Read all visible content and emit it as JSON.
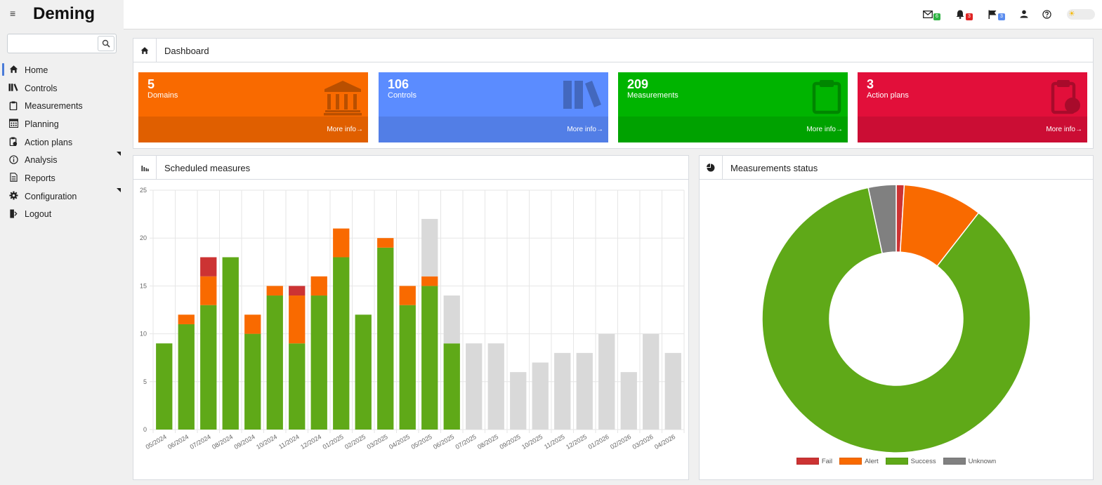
{
  "app": {
    "title": "Deming"
  },
  "search": {
    "placeholder": "",
    "value": ""
  },
  "sidebar": {
    "items": [
      {
        "name": "home",
        "label": "Home",
        "active": true,
        "submenu": false
      },
      {
        "name": "controls",
        "label": "Controls",
        "active": false,
        "submenu": false
      },
      {
        "name": "measurements",
        "label": "Measurements",
        "active": false,
        "submenu": false
      },
      {
        "name": "planning",
        "label": "Planning",
        "active": false,
        "submenu": false
      },
      {
        "name": "action-plans",
        "label": "Action plans",
        "active": false,
        "submenu": false
      },
      {
        "name": "analysis",
        "label": "Analysis",
        "active": false,
        "submenu": true
      },
      {
        "name": "reports",
        "label": "Reports",
        "active": false,
        "submenu": false
      },
      {
        "name": "configuration",
        "label": "Configuration",
        "active": false,
        "submenu": true
      },
      {
        "name": "logout",
        "label": "Logout",
        "active": false,
        "submenu": false
      }
    ]
  },
  "header": {
    "mail_count": "6",
    "bell_count": "3",
    "flag_count": "3",
    "colors": {
      "mail": "#2fb344",
      "bell": "#e02424",
      "flag": "#5b8def"
    }
  },
  "breadcrumb": {
    "title": "Dashboard"
  },
  "tiles": [
    {
      "name": "domains",
      "count": "5",
      "label": "Domains",
      "more": "More info",
      "color": "#f96a00",
      "footer_color": "#e05f00",
      "icon": "bank-icon"
    },
    {
      "name": "controls",
      "count": "106",
      "label": "Controls",
      "more": "More info",
      "color": "#5b8cff",
      "footer_color": "#527ee6",
      "icon": "books-icon"
    },
    {
      "name": "measurements",
      "count": "209",
      "label": "Measurements",
      "more": "More info",
      "color": "#00b400",
      "footer_color": "#00a200",
      "icon": "clipboard-icon"
    },
    {
      "name": "action-plans",
      "count": "3",
      "label": "Action plans",
      "more": "More info",
      "color": "#e20f3a",
      "footer_color": "#cb0d34",
      "icon": "clipboard-clock-icon"
    }
  ],
  "scheduled": {
    "title": "Scheduled measures"
  },
  "status": {
    "title": "Measurements status"
  },
  "chart_data": [
    {
      "type": "bar",
      "stacked": true,
      "title": "",
      "categories": [
        "05/2024",
        "06/2024",
        "07/2024",
        "08/2024",
        "09/2024",
        "10/2024",
        "11/2024",
        "12/2024",
        "01/2025",
        "02/2025",
        "03/2025",
        "04/2025",
        "05/2025",
        "06/2025",
        "07/2025",
        "08/2025",
        "09/2025",
        "10/2025",
        "11/2025",
        "12/2025",
        "01/2026",
        "02/2026",
        "03/2026",
        "04/2026"
      ],
      "series": [
        {
          "color": "#5fa918",
          "values": [
            9,
            11,
            13,
            18,
            10,
            14,
            9,
            14,
            18,
            12,
            19,
            13,
            15,
            9,
            0,
            0,
            0,
            0,
            0,
            0,
            0,
            0,
            0,
            0
          ]
        },
        {
          "color": "#f96a00",
          "values": [
            0,
            1,
            3,
            0,
            2,
            1,
            5,
            2,
            3,
            0,
            1,
            2,
            1,
            0,
            0,
            0,
            0,
            0,
            0,
            0,
            0,
            0,
            0,
            0
          ]
        },
        {
          "color": "#cc3333",
          "values": [
            0,
            0,
            2,
            0,
            0,
            0,
            1,
            0,
            0,
            0,
            0,
            0,
            0,
            0,
            0,
            0,
            0,
            0,
            0,
            0,
            0,
            0,
            0,
            0
          ]
        },
        {
          "color": "#d9d9d9",
          "values": [
            0,
            0,
            0,
            0,
            0,
            0,
            0,
            0,
            0,
            0,
            0,
            0,
            6,
            5,
            9,
            9,
            6,
            7,
            8,
            8,
            10,
            6,
            10,
            8
          ]
        }
      ],
      "ylim": [
        0,
        25
      ],
      "yticks": [
        0,
        5,
        10,
        15,
        20,
        25
      ],
      "grid": true
    },
    {
      "type": "pie",
      "donut": true,
      "legend": "bottom",
      "slices": [
        {
          "name": "Fail",
          "value": 2,
          "color": "#cc3333"
        },
        {
          "name": "Alert",
          "value": 20,
          "color": "#f96a00"
        },
        {
          "name": "Success",
          "value": 180,
          "color": "#5fa918"
        },
        {
          "name": "Unknown",
          "value": 7,
          "color": "#808080"
        }
      ]
    }
  ]
}
